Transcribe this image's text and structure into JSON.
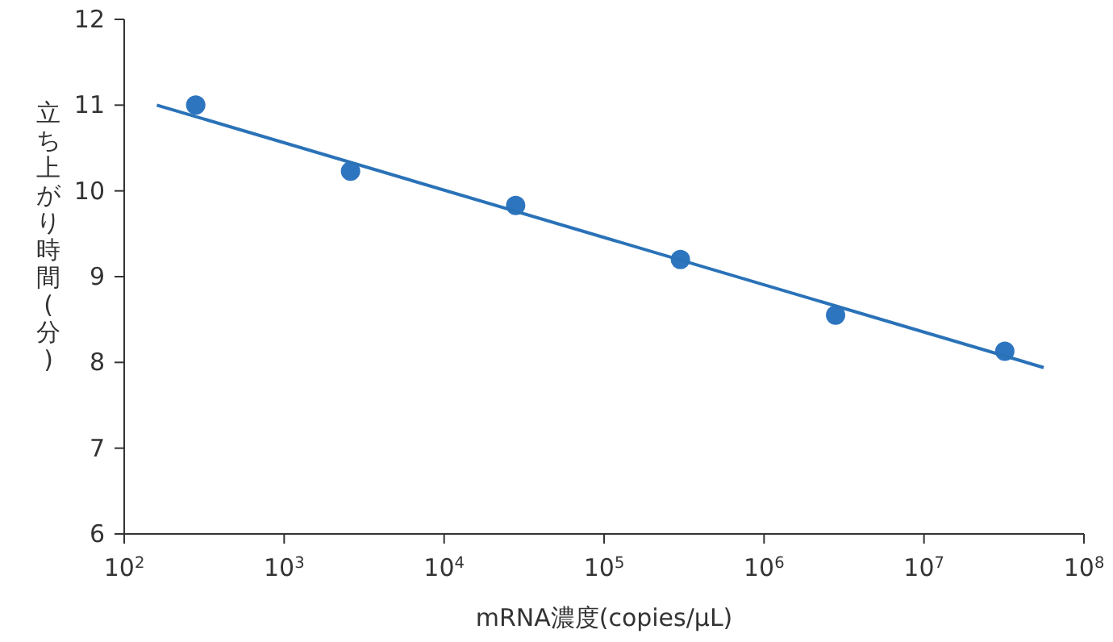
{
  "chart_data": {
    "type": "scatter",
    "xlabel": "mRNA濃度(copies/μL)",
    "ylabel": "立ち上がり時間(分)",
    "log": "x",
    "grid": false,
    "xlim": [
      100,
      100000000
    ],
    "xticks": [
      {
        "value": 100,
        "label": "10$^{2}$"
      },
      {
        "value": 1000,
        "label": "10$^{3}$"
      },
      {
        "value": 10000,
        "label": "10$^{4}$"
      },
      {
        "value": 100000,
        "label": "10$^{5}$"
      },
      {
        "value": 1000000,
        "label": "10$^{6}$"
      },
      {
        "value": 10000000,
        "label": "10$^{7}$"
      },
      {
        "value": 100000000,
        "label": "10$^{8}$"
      }
    ],
    "ylim": [
      6,
      12
    ],
    "yticks": [
      6,
      7,
      8,
      9,
      10,
      11,
      12
    ],
    "series": [
      {
        "type": "scatter",
        "marker": "circle",
        "color": "#2e75c0",
        "x": [
          280,
          2600,
          28000,
          300000,
          2800000,
          32000000
        ],
        "values": [
          11.0,
          10.23,
          9.83,
          9.2,
          8.55,
          8.13
        ]
      },
      {
        "type": "line",
        "marker": "none",
        "color": "#2a72b8",
        "x": [
          160,
          56000000
        ],
        "values": [
          11.0,
          7.94
        ]
      }
    ]
  }
}
